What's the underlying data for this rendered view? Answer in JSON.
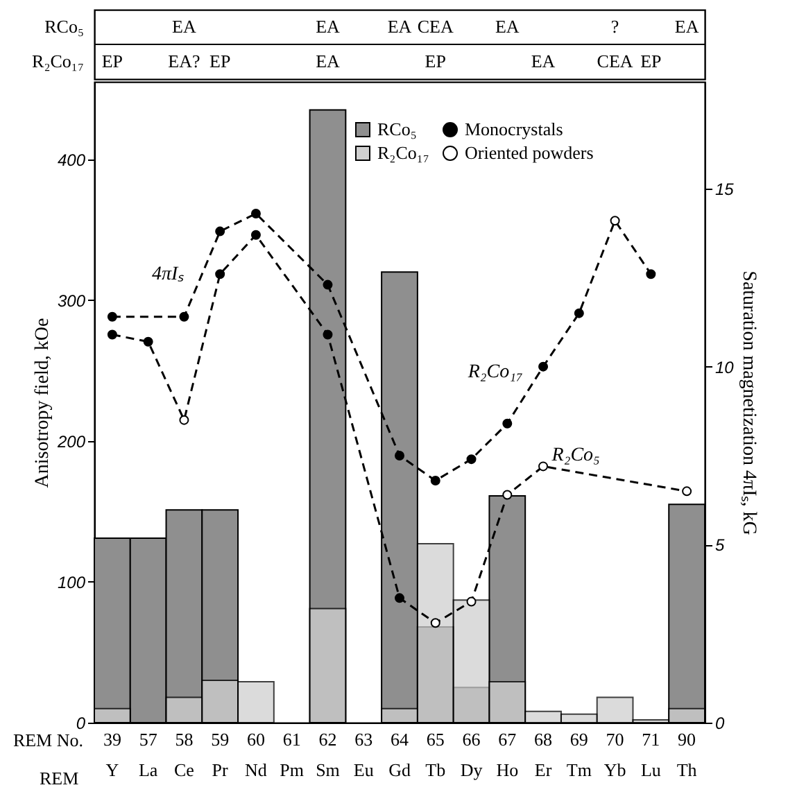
{
  "chart_data": [
    {
      "type": "other",
      "y_categories": [
        "RCo₅",
        "R₂Co₁₇"
      ],
      "annotations": [
        {
          "text": "EA",
          "x": "58\nCe",
          "y": "RCo₅"
        },
        {
          "text": "EA",
          "x": "62\nSm",
          "y": "RCo₅"
        },
        {
          "text": "EA",
          "x": "64\nGd",
          "y": "RCo₅"
        },
        {
          "text": "CEA",
          "x": "65\nTb",
          "y": "RCo₅"
        },
        {
          "text": "EA",
          "x": "67\nHo",
          "y": "RCo₅"
        },
        {
          "text": "?",
          "x": "70\nYb",
          "y": "RCo₅"
        },
        {
          "text": "EA",
          "x": "90\nTh",
          "y": "RCo₅"
        },
        {
          "text": "EP",
          "x": "39\nY",
          "y": "R₂Co₁₇"
        },
        {
          "text": "EA?",
          "x": "58\nCe",
          "y": "R₂Co₁₇"
        },
        {
          "text": "EP",
          "x": "59\nPr",
          "y": "R₂Co₁₇"
        },
        {
          "text": "EA",
          "x": "62\nSm",
          "y": "R₂Co₁₇"
        },
        {
          "text": "EP",
          "x": "65\nTb",
          "y": "R₂Co₁₇"
        },
        {
          "text": "EA",
          "x": "68\nEr",
          "y": "R₂Co₁₇"
        },
        {
          "text": "CEA",
          "x": "70\nYb",
          "y": "R₂Co₁₇"
        },
        {
          "text": "EP",
          "x": "71\nLu",
          "y": "R₂Co₁₇"
        }
      ]
    },
    {
      "type": "bar",
      "xlabel": "REM",
      "ylabel": "Anisotropy field, kOe",
      "y2label": "Saturation magnetization 4πIₛ, kG",
      "categories": [
        "39\nY",
        "57\nLa",
        "58\nCe",
        "59\nPr",
        "60\nNd",
        "61\nPm",
        "62\nSm",
        "63\nEu",
        "64\nGd",
        "65\nTb",
        "66\nDy",
        "67\nHo",
        "68\nEr",
        "69\nTm",
        "70\nYb",
        "71\nLu",
        "90\nTh"
      ],
      "series": [
        {
          "name": "RCo₅",
          "color": "#8f8f8f",
          "values": [
            131,
            131,
            151,
            151,
            null,
            null,
            435,
            null,
            320,
            68,
            25,
            161,
            null,
            null,
            null,
            null,
            155
          ]
        },
        {
          "name": "R₂Co₁₇",
          "color": "#d0d0d0",
          "values": [
            10,
            null,
            18,
            30,
            29,
            null,
            81,
            null,
            10,
            127,
            87,
            29,
            8,
            6,
            18,
            2,
            10
          ]
        },
        {
          "type": "line",
          "name": "R₂Co₁₇",
          "axis": "y2",
          "color": "#000000",
          "line_style": "dashed",
          "values": [
            11.4,
            null,
            11.4,
            13.8,
            14.3,
            null,
            12.3,
            null,
            7.5,
            6.8,
            7.4,
            8.4,
            10.0,
            11.5,
            14.1,
            12.6,
            null
          ]
        },
        {
          "type": "line",
          "name": "R₂Co₅",
          "axis": "y2",
          "color": "#000000",
          "line_style": "dashed",
          "values": [
            10.9,
            10.7,
            8.5,
            12.6,
            13.7,
            null,
            10.9,
            null,
            3.5,
            2.8,
            3.4,
            6.4,
            7.2,
            null,
            null,
            null,
            6.5
          ]
        },
        {
          "type": "scatter",
          "name": "Monocrystals",
          "axis": "y2",
          "color": "#000000",
          "marker": "circle",
          "x": [
            "39\nY",
            "58\nCe",
            "59\nPr",
            "60\nNd",
            "62\nSm",
            "64\nGd",
            "65\nTb",
            "66\nDy",
            "67\nHo",
            "68\nEr",
            "69\nTm",
            "71\nLu",
            "39\nY",
            "57\nLa",
            "59\nPr",
            "60\nNd",
            "62\nSm",
            "64\nGd"
          ],
          "values": [
            11.4,
            11.4,
            13.8,
            14.3,
            12.3,
            7.5,
            6.8,
            7.4,
            8.4,
            10.0,
            11.5,
            12.6,
            10.9,
            10.7,
            12.6,
            13.7,
            10.9,
            3.5
          ]
        },
        {
          "type": "scatter",
          "name": "Oriented powders",
          "axis": "y2",
          "color": "#ffffff",
          "marker": "circle",
          "x": [
            "70\nYb",
            "58\nCe",
            "65\nTb",
            "66\nDy",
            "67\nHo",
            "68\nEr",
            "90\nTh"
          ],
          "values": [
            14.1,
            8.5,
            2.8,
            3.4,
            6.4,
            7.2,
            6.5
          ]
        }
      ],
      "ylim": [
        0,
        455
      ],
      "yticks": [
        0,
        100,
        200,
        300,
        400
      ],
      "y2lim": [
        0,
        18
      ],
      "y2ticks": [
        0,
        5,
        10,
        15
      ],
      "legend": "top right",
      "annotations": [
        "4πIₛ",
        "REM No."
      ]
    }
  ]
}
